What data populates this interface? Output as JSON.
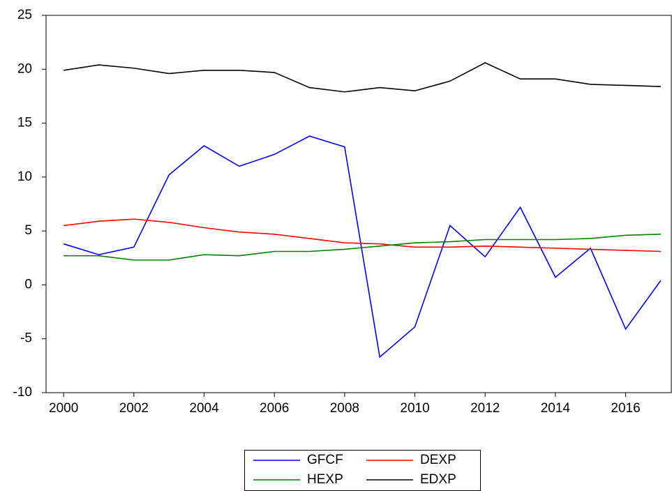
{
  "chart_data": {
    "type": "line",
    "x": [
      2000,
      2001,
      2002,
      2003,
      2004,
      2005,
      2006,
      2007,
      2008,
      2009,
      2010,
      2011,
      2012,
      2013,
      2014,
      2015,
      2016,
      2017
    ],
    "series": [
      {
        "name": "GFCF",
        "color": "#0000ff",
        "values": [
          3.8,
          2.8,
          3.5,
          10.2,
          12.9,
          11.0,
          12.1,
          13.8,
          12.8,
          -6.7,
          -3.9,
          5.5,
          2.6,
          7.2,
          0.7,
          3.4,
          -4.1,
          0.4
        ]
      },
      {
        "name": "DEXP",
        "color": "#ff0000",
        "values": [
          5.5,
          5.9,
          6.1,
          5.8,
          5.3,
          4.9,
          4.7,
          4.3,
          3.9,
          3.8,
          3.5,
          3.5,
          3.6,
          3.5,
          3.4,
          3.3,
          3.2,
          3.1
        ]
      },
      {
        "name": "HEXP",
        "color": "#008000",
        "values": [
          2.7,
          2.7,
          2.3,
          2.3,
          2.8,
          2.7,
          3.1,
          3.1,
          3.3,
          3.6,
          3.9,
          4.0,
          4.2,
          4.2,
          4.2,
          4.3,
          4.6,
          4.7
        ]
      },
      {
        "name": "EDXP",
        "color": "#000000",
        "values": [
          19.9,
          20.4,
          20.1,
          19.6,
          19.9,
          19.9,
          19.7,
          18.3,
          17.9,
          18.3,
          18.0,
          18.9,
          20.6,
          19.1,
          19.1,
          18.6,
          18.5,
          18.4
        ]
      }
    ],
    "xlim": [
      1999.5,
      2017.3
    ],
    "xticks": [
      2000,
      2002,
      2004,
      2006,
      2008,
      2010,
      2012,
      2014,
      2016
    ],
    "ylim": [
      -10,
      25
    ],
    "yticks": [
      -10,
      -5,
      0,
      5,
      10,
      15,
      20,
      25
    ]
  }
}
